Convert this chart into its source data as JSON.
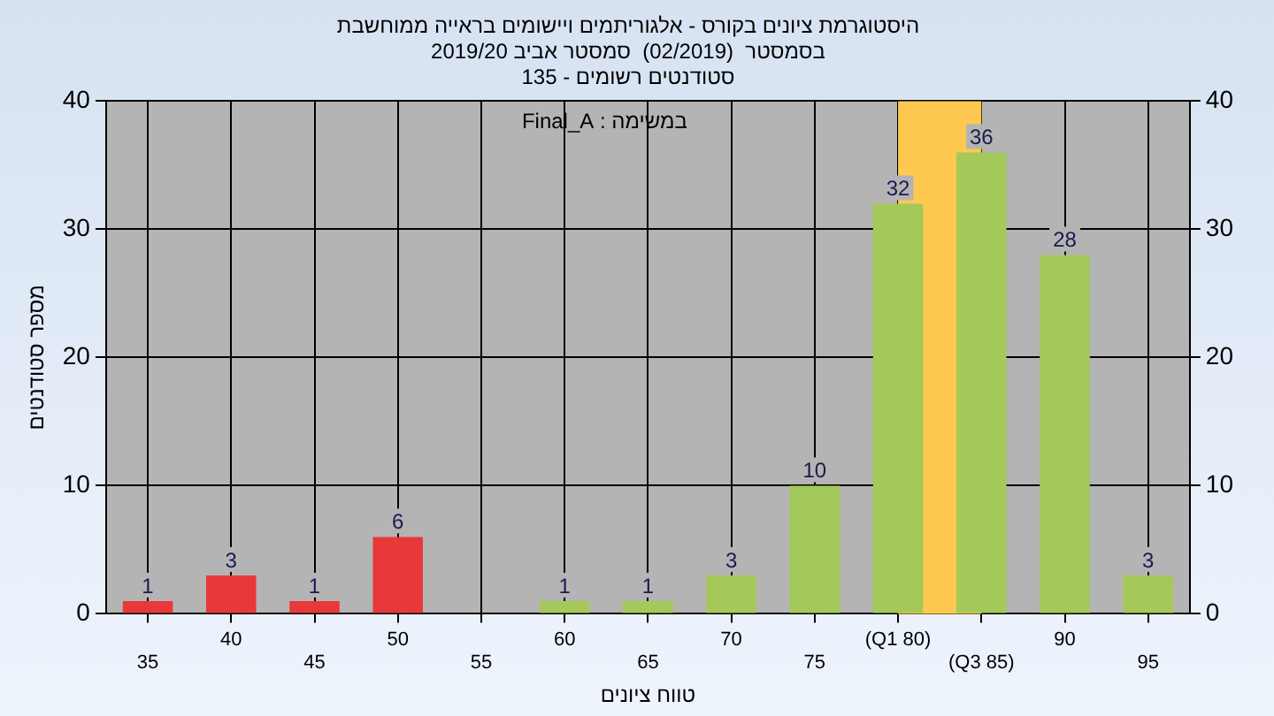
{
  "chart_data": {
    "type": "bar",
    "title": "היסטוגרמת ציונים בקורס - אלגוריתמים ויישומים בראייה ממוחשבת",
    "subtitle": "בסמסטר  (02/2019)  סמסטר אביב 2019/20\nסטודנטים רשומים - 135",
    "xlabel": "טווח ציונים",
    "ylabel": "מספר סטודנטים",
    "annotations": [
      "במשימה : Final_A"
    ],
    "categories": [
      "35",
      "40",
      "45",
      "50",
      "55",
      "60",
      "65",
      "70",
      "75",
      "(Q1 80)",
      "(Q3 85)",
      "90",
      "95"
    ],
    "values": [
      1,
      3,
      1,
      6,
      0,
      1,
      1,
      3,
      10,
      32,
      36,
      28,
      3
    ],
    "value_labels": [
      "1",
      "3",
      "1",
      "6",
      null,
      "1",
      "1",
      "3",
      "10",
      "32",
      "36",
      "28",
      "3"
    ],
    "colors": [
      "#e8383a",
      "#e8383a",
      "#e8383a",
      "#e8383a",
      "#e8383a",
      "#a4c85a",
      "#a4c85a",
      "#a4c85a",
      "#a4c85a",
      "#a4c85a",
      "#a4c85a",
      "#a4c85a",
      "#a4c85a"
    ],
    "bands": [
      {
        "axis": "x",
        "from": "(Q1 80)",
        "to": "(Q3 85)",
        "color": "#ffc850"
      }
    ],
    "ylim": [
      0,
      40
    ],
    "yticks": [
      0,
      10,
      20,
      30,
      40
    ],
    "y2lim": [
      0,
      40
    ],
    "y2ticks": [
      0,
      10,
      20,
      30,
      40
    ],
    "grid": true
  }
}
